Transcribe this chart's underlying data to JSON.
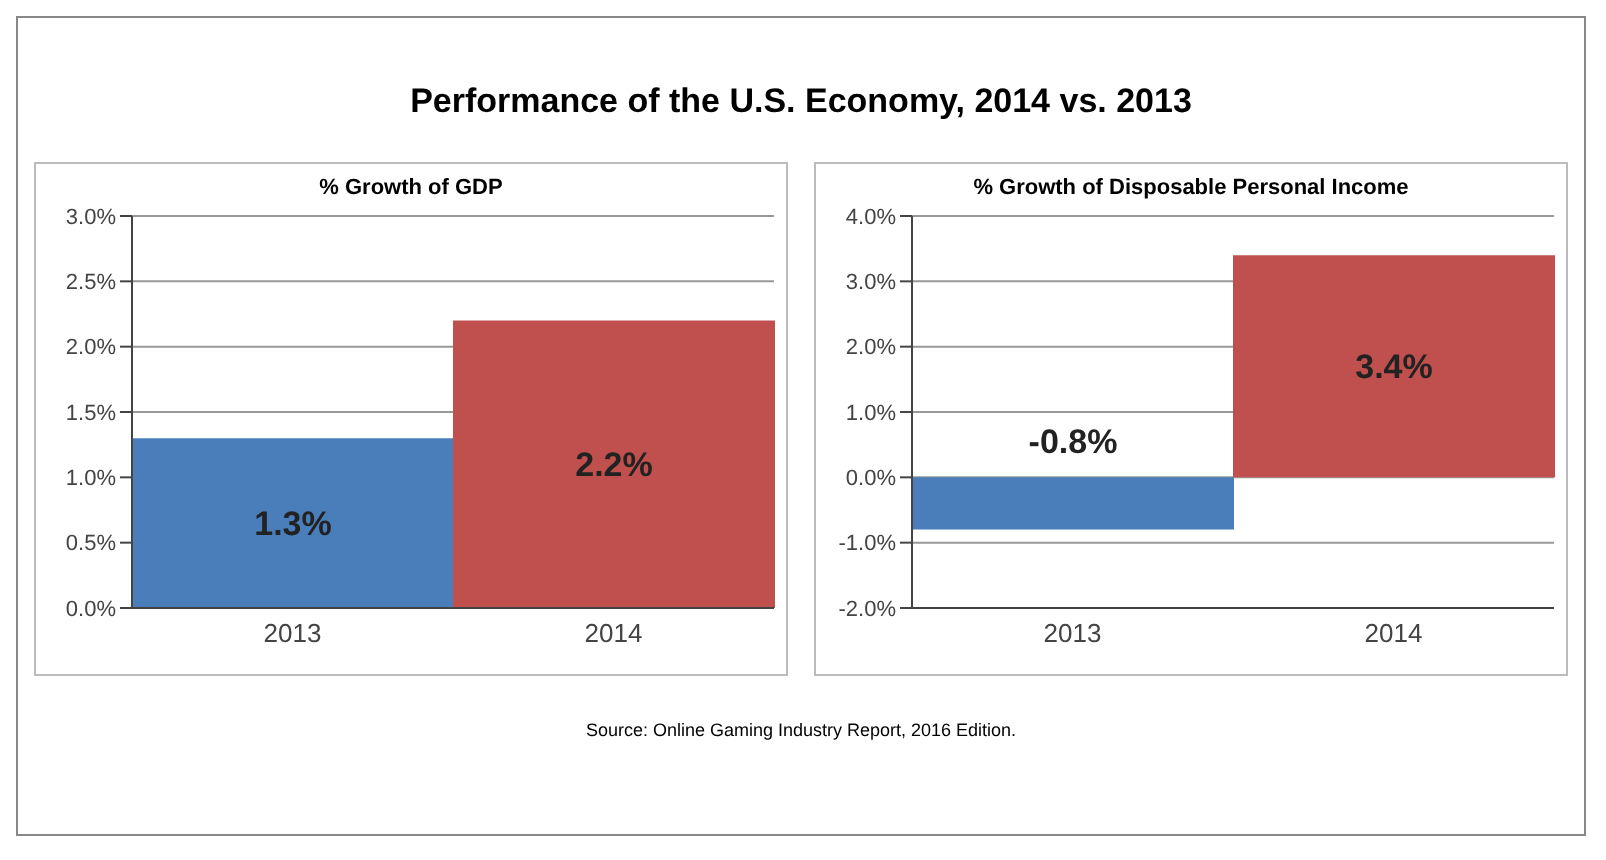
{
  "chart_data": [
    {
      "type": "bar",
      "title": "Performance of the U.S. Economy, 2014 vs. 2013",
      "subtitle": "% Growth of GDP",
      "categories": [
        "2013",
        "2014"
      ],
      "values": [
        1.3,
        2.2
      ],
      "colors": [
        "#4a7ebb",
        "#c0504d"
      ],
      "value_labels": [
        "1.3%",
        "2.2%"
      ],
      "ylim": [
        0,
        3
      ],
      "yticks": [
        {
          "value": 0,
          "label": "0.0%"
        },
        {
          "value": 0.5,
          "label": "0.5%"
        },
        {
          "value": 1,
          "label": "1.0%"
        },
        {
          "value": 1.5,
          "label": "1.5%"
        },
        {
          "value": 2,
          "label": "2.0%"
        },
        {
          "value": 2.5,
          "label": "2.5%"
        },
        {
          "value": 3,
          "label": "3.0%"
        }
      ],
      "grid": "y",
      "legend": false,
      "annotations": [
        "Source: Online Gaming Industry Report, 2016 Edition."
      ]
    },
    {
      "type": "bar",
      "subtitle": "% Growth of Disposable Personal Income",
      "categories": [
        "2013",
        "2014"
      ],
      "values": [
        -0.8,
        3.4
      ],
      "colors": [
        "#4a7ebb",
        "#c0504d"
      ],
      "value_labels": [
        "-0.8%",
        "3.4%"
      ],
      "ylim": [
        -2,
        4
      ],
      "yticks": [
        {
          "value": -2,
          "label": "-2.0%"
        },
        {
          "value": -1,
          "label": "-1.0%"
        },
        {
          "value": 0,
          "label": "0.0%"
        },
        {
          "value": 1,
          "label": "1.0%"
        },
        {
          "value": 2,
          "label": "2.0%"
        },
        {
          "value": 3,
          "label": "3.0%"
        },
        {
          "value": 4,
          "label": "4.0%"
        }
      ],
      "grid": "y",
      "legend": false
    }
  ]
}
